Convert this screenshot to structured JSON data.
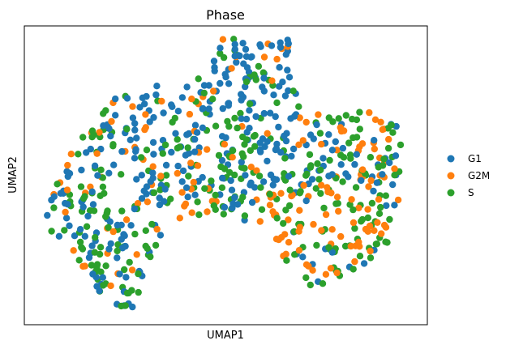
{
  "chart_data": {
    "type": "scatter",
    "title": "Phase",
    "xlabel": "UMAP1",
    "ylabel": "UMAP2",
    "xlim": [
      0,
      100
    ],
    "ylim": [
      0,
      100
    ],
    "grid": false,
    "ticks": false,
    "legend": {
      "placement": "right"
    },
    "colors": {
      "G1": "#1f77b4",
      "G2M": "#ff7f0e",
      "S": "#2ca02c"
    },
    "series": [
      {
        "name": "G1",
        "color": "#1f77b4",
        "point_count": 300
      },
      {
        "name": "G2M",
        "color": "#ff7f0e",
        "point_count": 220
      },
      {
        "name": "S",
        "color": "#2ca02c",
        "point_count": 280
      }
    ]
  }
}
